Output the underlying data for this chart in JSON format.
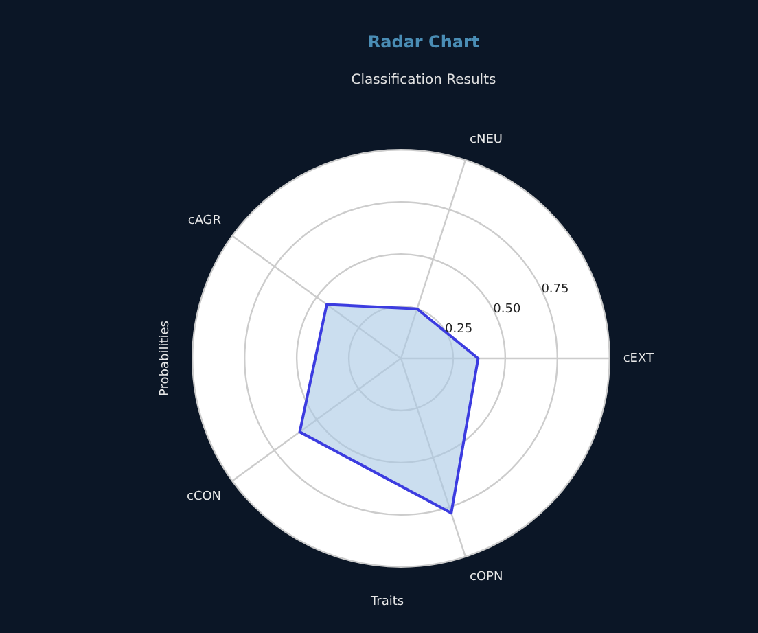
{
  "chart_data": {
    "type": "radar",
    "title": "Radar Chart",
    "subtitle": "Classification Results",
    "xlabel": "Traits",
    "ylabel": "Probabilities",
    "categories": [
      "cNEU",
      "cEXT",
      "cOPN",
      "cCON",
      "cAGR"
    ],
    "series": [
      {
        "color": "#3c3ce0",
        "values": [
          0.25,
          0.37,
          0.78,
          0.6,
          0.44
        ]
      }
    ],
    "ylim": [
      0,
      1
    ],
    "yticks": [
      0.25,
      {
        "value": 0.5,
        "label": "0.50"
      },
      0.75
    ],
    "grid": true,
    "legend": false
  }
}
